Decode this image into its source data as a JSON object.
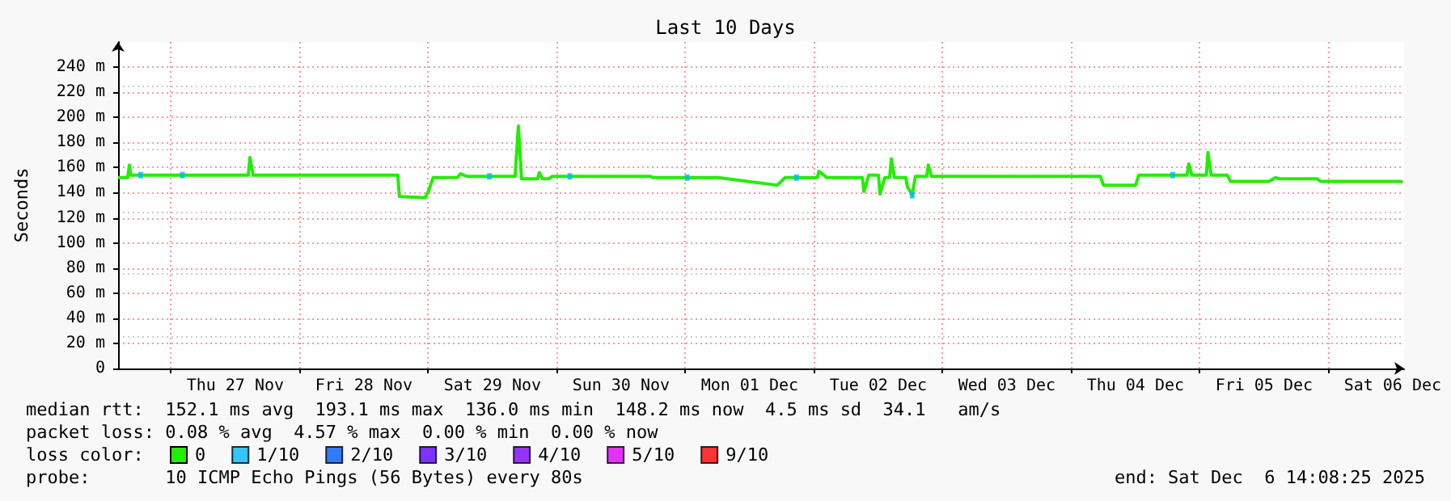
{
  "chart_data": {
    "type": "line",
    "title": "Last 10 Days",
    "ylabel": "Seconds",
    "xlim": [
      "2025-11-26T14:08",
      "2025-12-06T14:08"
    ],
    "xticks": [
      {
        "value": "2025-11-27T00:00",
        "label": null
      },
      {
        "value": "2025-11-28T00:00",
        "label": null
      },
      {
        "value": "2025-11-29T00:00",
        "label": null
      },
      {
        "value": "2025-11-30T00:00",
        "label": null
      },
      {
        "value": "2025-12-01T00:00",
        "label": null
      },
      {
        "value": "2025-12-02T00:00",
        "label": null
      },
      {
        "value": "2025-12-03T00:00",
        "label": null
      },
      {
        "value": "2025-12-04T00:00",
        "label": null
      },
      {
        "value": "2025-12-05T00:00",
        "label": null
      },
      {
        "value": "2025-12-06T00:00",
        "label": null
      },
      {
        "value": "2025-11-27T12:00",
        "label": "Thu 27 Nov"
      },
      {
        "value": "2025-11-28T12:00",
        "label": "Fri 28 Nov"
      },
      {
        "value": "2025-11-29T12:00",
        "label": "Sat 29 Nov"
      },
      {
        "value": "2025-11-30T12:00",
        "label": "Sun 30 Nov"
      },
      {
        "value": "2025-12-01T12:00",
        "label": "Mon 01 Dec"
      },
      {
        "value": "2025-12-02T12:00",
        "label": "Tue 02 Dec"
      },
      {
        "value": "2025-12-03T12:00",
        "label": "Wed 03 Dec"
      },
      {
        "value": "2025-12-04T12:00",
        "label": "Thu 04 Dec"
      },
      {
        "value": "2025-12-05T12:00",
        "label": "Fri 05 Dec"
      },
      {
        "value": "2025-12-06T12:00",
        "label": "Sat 06 Dec"
      }
    ],
    "ylim": [
      0,
      260
    ],
    "yticks": [
      0,
      {
        "value": 20,
        "label": "20 m"
      },
      {
        "value": 40,
        "label": "40 m"
      },
      {
        "value": 60,
        "label": "60 m"
      },
      {
        "value": 80,
        "label": "80 m"
      },
      {
        "value": 100,
        "label": "100 m"
      },
      {
        "value": 120,
        "label": "120 m"
      },
      {
        "value": 140,
        "label": "140 m"
      },
      {
        "value": 160,
        "label": "160 m"
      },
      {
        "value": 180,
        "label": "180 m"
      },
      {
        "value": 200,
        "label": "200 m"
      },
      {
        "value": 220,
        "label": "220 m"
      },
      {
        "value": 240,
        "label": "240 m"
      }
    ],
    "grid": true,
    "legend": "bottom",
    "series": [
      {
        "name": "0",
        "color": "#22ee00",
        "x": [
          "2025-11-26T14:08",
          "2025-11-26T15:56",
          "2025-11-26T16:14",
          "2025-11-26T16:32",
          "2025-11-27T14:26",
          "2025-11-27T14:44",
          "2025-11-27T15:20",
          "2025-11-28T18:20",
          "2025-11-28T18:38",
          "2025-11-28T23:26",
          "2025-11-29T00:02",
          "2025-11-29T00:56",
          "2025-11-29T05:26",
          "2025-11-29T06:02",
          "2025-11-29T07:14",
          "2025-11-29T16:14",
          "2025-11-29T16:50",
          "2025-11-29T17:26",
          "2025-11-29T20:26",
          "2025-11-29T20:44",
          "2025-11-29T21:20",
          "2025-11-29T22:32",
          "2025-11-29T23:08",
          "2025-11-30T17:26",
          "2025-11-30T18:02",
          "2025-12-01T06:02",
          "2025-12-01T17:08",
          "2025-12-01T18:38",
          "2025-12-02T00:38",
          "2025-12-02T00:56",
          "2025-12-02T02:26",
          "2025-12-02T09:02",
          "2025-12-02T09:20",
          "2025-12-02T10:14",
          "2025-12-02T12:02",
          "2025-12-02T12:20",
          "2025-12-02T13:14",
          "2025-12-02T14:08",
          "2025-12-02T14:26",
          "2025-12-02T15:02",
          "2025-12-02T17:08",
          "2025-12-02T17:26",
          "2025-12-02T18:20",
          "2025-12-02T18:56",
          "2025-12-02T21:02",
          "2025-12-02T21:20",
          "2025-12-02T21:56",
          "2025-12-04T05:26",
          "2025-12-04T06:02",
          "2025-12-04T12:02",
          "2025-12-04T12:38",
          "2025-12-04T21:38",
          "2025-12-04T21:56",
          "2025-12-04T22:32",
          "2025-12-05T01:14",
          "2025-12-05T01:32",
          "2025-12-05T02:08",
          "2025-12-05T05:08",
          "2025-12-05T05:44",
          "2025-12-05T12:56",
          "2025-12-05T14:08",
          "2025-12-05T15:02",
          "2025-12-05T21:56",
          "2025-12-05T22:32",
          "2025-12-06T13:32",
          "2025-12-06T13:50"
        ],
        "values": [
          152,
          152,
          162,
          154,
          154,
          168,
          154,
          154,
          137,
          136,
          141,
          152,
          152,
          155,
          153,
          153,
          193,
          151,
          151,
          156,
          151,
          151,
          153,
          153,
          152,
          152,
          146,
          152,
          152,
          157,
          152,
          152,
          141,
          154,
          154,
          139,
          152,
          152,
          167,
          152,
          152,
          145,
          138,
          153,
          153,
          162,
          153,
          153,
          146,
          146,
          154,
          154,
          163,
          154,
          154,
          172,
          154,
          154,
          149,
          149,
          152,
          151,
          151,
          149,
          149,
          148
        ]
      },
      {
        "name": "1/10",
        "type": "scatter",
        "marker": "square",
        "color": "#00b8ff",
        "x": [
          "2025-11-26T18:20",
          "2025-11-27T02:08",
          "2025-11-29T11:26",
          "2025-11-30T02:26",
          "2025-12-01T00:20",
          "2025-12-01T20:44",
          "2025-12-02T18:20",
          "2025-12-04T18:56"
        ],
        "values": [
          154,
          154,
          153,
          153,
          152,
          152,
          138,
          154
        ]
      },
      {
        "name": "2/10",
        "type": "scatter",
        "color": "#0059ff"
      },
      {
        "name": "3/10",
        "type": "scatter",
        "color": "#5e00ff"
      },
      {
        "name": "4/10",
        "type": "scatter",
        "color": "#7e00ff"
      },
      {
        "name": "5/10",
        "type": "scatter",
        "color": "#dd00ff"
      },
      {
        "name": "9/10",
        "type": "scatter",
        "color": "#ff0000"
      }
    ],
    "annotations": [
      "median rtt:  152.1 ms avg  193.1 ms max  136.0 ms min  148.2 ms now  4.5 ms sd  34.1   am/s",
      "packet loss: 0.08 % avg  4.57 % max  0.00 % min  0.00 % now",
      "loss color:",
      "probe:       10 ICMP Echo Pings (56 Bytes) every 80s",
      "end: Sat Dec  6 14:08:25 2025"
    ]
  }
}
